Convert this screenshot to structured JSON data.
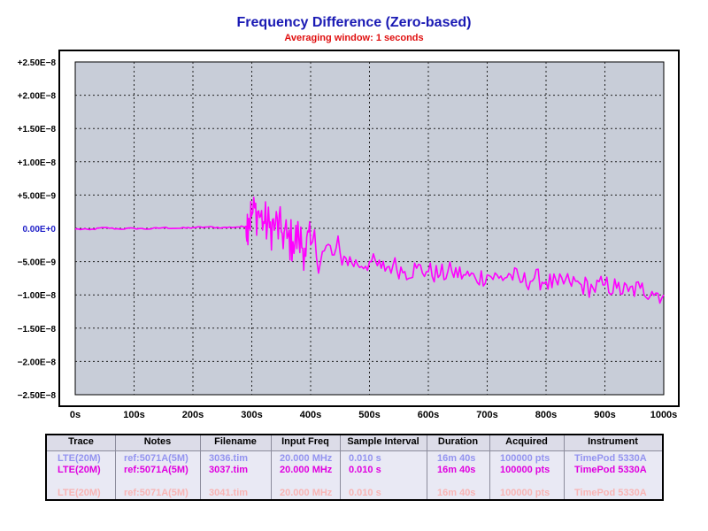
{
  "title": "Frequency Difference (Zero-based)",
  "subtitle": "Averaging window: 1 seconds",
  "colors": {
    "title": "#1a1ab4",
    "subtitle": "#e01010",
    "plot_bg": "#c8cdd8",
    "zero_label": "#2020c8",
    "trace": "#ff00ff",
    "row1": "#9494f0",
    "row2": "#e000e0",
    "row3": "#f8b4b4"
  },
  "chart_data": {
    "type": "line",
    "title": "Frequency Difference (Zero-based)",
    "subtitle": "Averaging window: 1 seconds",
    "xlabel": "",
    "ylabel": "",
    "xlim": [
      0,
      1000
    ],
    "ylim": [
      -2.5e-08,
      2.5e-08
    ],
    "grid": true,
    "x_tick_labels": [
      "0s",
      "100s",
      "200s",
      "300s",
      "400s",
      "500s",
      "600s",
      "700s",
      "800s",
      "900s",
      "1000s"
    ],
    "y_tick_labels": [
      "+2.50E−8",
      "+2.00E−8",
      "+1.50E−8",
      "+1.00E−8",
      "+5.00E−9",
      "0.00E+0",
      "−5.00E−9",
      "−1.00E−8",
      "−1.50E−8",
      "−2.00E−8",
      "−2.50E−8"
    ],
    "series": [
      {
        "color": "#ff00ff",
        "x": [
          0,
          25,
          50,
          75,
          100,
          125,
          150,
          175,
          200,
          225,
          250,
          275,
          290,
          295,
          300,
          310,
          320,
          330,
          340,
          350,
          360,
          370,
          380,
          390,
          400,
          420,
          440,
          460,
          480,
          500,
          520,
          540,
          560,
          580,
          600,
          620,
          640,
          660,
          680,
          700,
          720,
          740,
          760,
          780,
          800,
          820,
          840,
          860,
          880,
          900,
          920,
          940,
          960,
          980,
          1000
        ],
        "y": [
          -1e-10,
          -2e-10,
          1e-10,
          -1e-10,
          0,
          -1e-10,
          1e-10,
          0,
          1e-10,
          2e-10,
          1e-10,
          2e-10,
          3e-10,
          1.5e-09,
          2e-09,
          2.5e-09,
          1e-09,
          1e-10,
          5e-10,
          -5e-10,
          -1.5e-09,
          -2e-09,
          -1.5e-09,
          -3e-09,
          -2.5e-09,
          -3.5e-09,
          -4e-09,
          -4.5e-09,
          -5.5e-09,
          -5e-09,
          -6e-09,
          -5.5e-09,
          -6.5e-09,
          -6e-09,
          -6.5e-09,
          -7e-09,
          -6.5e-09,
          -7e-09,
          -7.5e-09,
          -7e-09,
          -7.5e-09,
          -7e-09,
          -8e-09,
          -7.5e-09,
          -8e-09,
          -8.5e-09,
          -8e-09,
          -8.5e-09,
          -9e-09,
          -8.5e-09,
          -9e-09,
          -9.5e-09,
          -9e-09,
          -9.5e-09,
          -1e-08
        ]
      }
    ]
  },
  "legend_table": {
    "headers": [
      "Trace",
      "Notes",
      "Filename",
      "Input Freq",
      "Sample Interval",
      "Duration",
      "Acquired",
      "Instrument"
    ],
    "rows": [
      [
        "LTE(20M)",
        "ref:5071A(5M)",
        "3036.tim",
        "20.000 MHz",
        "0.010 s",
        "16m 40s",
        "100000 pts",
        "TimePod 5330A"
      ],
      [
        "LTE(20M)",
        "ref:5071A(5M)",
        "3037.tim",
        "20.000 MHz",
        "0.010 s",
        "16m 40s",
        "100000 pts",
        "TimePod 5330A"
      ],
      [
        "LTE(20M)",
        "ref:5071A(5M)",
        "3041.tim",
        "20.000 MHz",
        "0.010 s",
        "16m 40s",
        "100000 pts",
        "TimePod 5330A"
      ]
    ]
  }
}
